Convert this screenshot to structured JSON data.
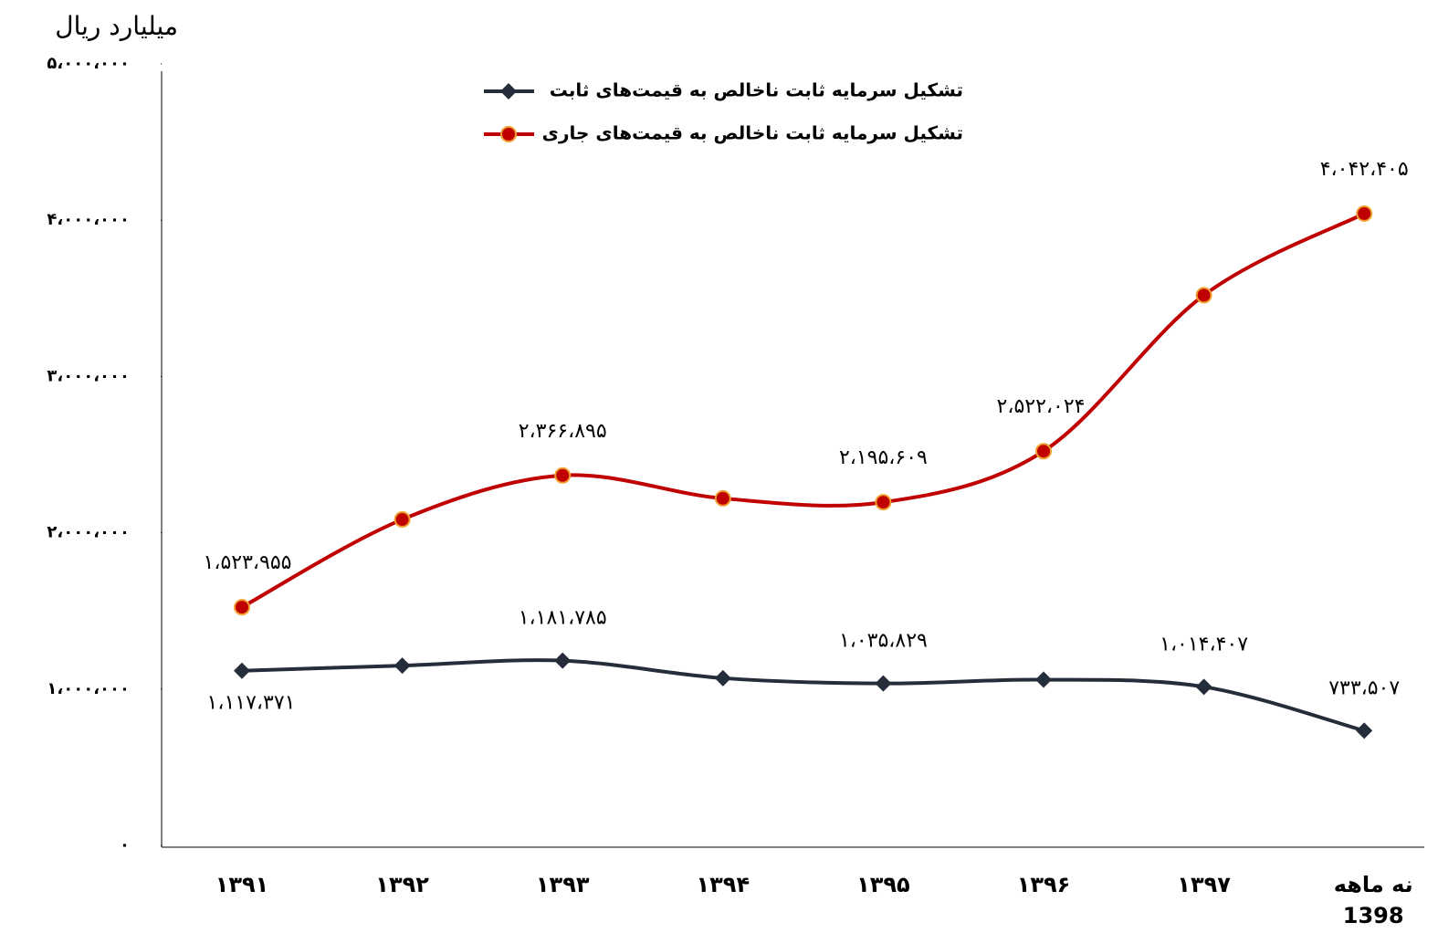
{
  "chart_data": {
    "type": "line",
    "y_label": "میلیارد ریال",
    "categories": [
      "۱۳۹۱",
      "۱۳۹۲",
      "۱۳۹۳",
      "۱۳۹۴",
      "۱۳۹۵",
      "۱۳۹۶",
      "۱۳۹۷",
      "نه ماهه 1398"
    ],
    "series": [
      {
        "name": "تشکیل سرمایه ثابت ناخالص به قیمت‌های ثابت",
        "color": "#262d3a",
        "marker": "diamond",
        "values": [
          1117371,
          1150000,
          1181785,
          1070000,
          1035829,
          1060000,
          1014407,
          733507
        ],
        "value_labels": [
          "۱،۱۱۷،۳۷۱",
          null,
          "۱،۱۸۱،۷۸۵",
          null,
          "۱،۰۳۵،۸۲۹",
          null,
          "۱،۰۱۴،۴۰۷",
          "۷۳۳،۵۰۷"
        ]
      },
      {
        "name": "تشکیل سرمایه ثابت ناخالص به قیمت‌های جاری",
        "color": "#c00000",
        "marker": "circle",
        "values": [
          1523955,
          2085000,
          2366895,
          2220000,
          2195609,
          2522024,
          3520000,
          4042405
        ],
        "value_labels": [
          "۱،۵۲۳،۹۵۵",
          null,
          "۲،۳۶۶،۸۹۵",
          null,
          "۲،۱۹۵،۶۰۹",
          "۲،۵۲۲،۰۲۴",
          null,
          "۴،۰۴۲،۴۰۵"
        ]
      }
    ],
    "ylim": [
      0,
      5000000
    ],
    "yticks": [
      {
        "value": 0,
        "label": "۰"
      },
      {
        "value": 1000000,
        "label": "۱،۰۰۰،۰۰۰"
      },
      {
        "value": 2000000,
        "label": "۲،۰۰۰،۰۰۰"
      },
      {
        "value": 3000000,
        "label": "۳،۰۰۰،۰۰۰"
      },
      {
        "value": 4000000,
        "label": "۴،۰۰۰،۰۰۰"
      },
      {
        "value": 5000000,
        "label": "۵،۰۰۰،۰۰۰"
      }
    ],
    "grid": false,
    "legend": "top"
  }
}
